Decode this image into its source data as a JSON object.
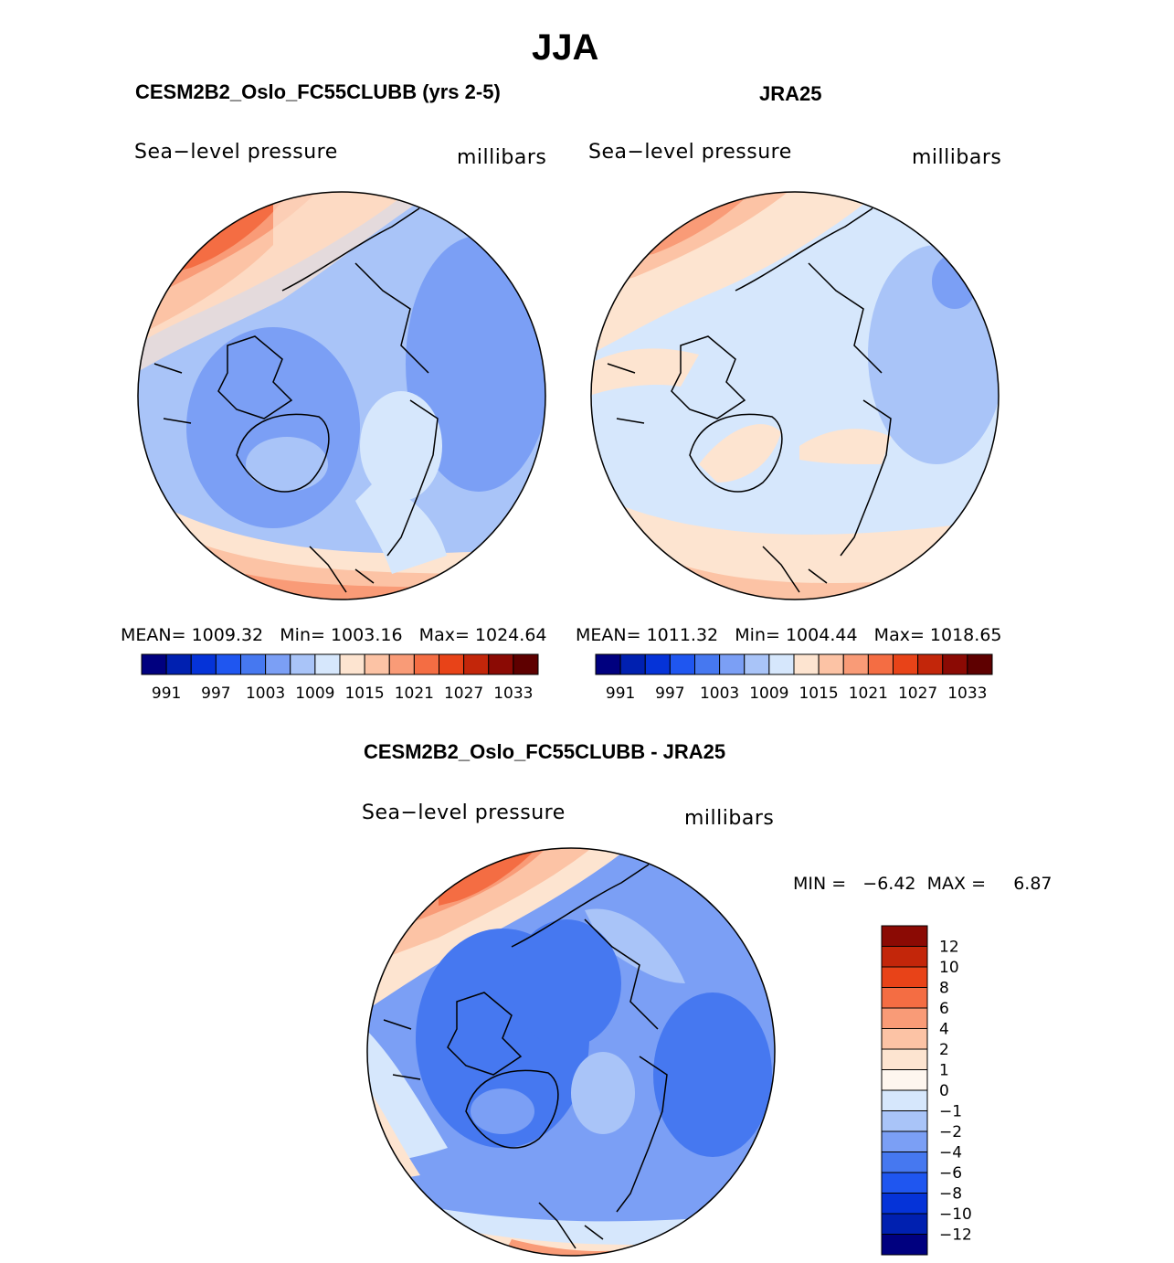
{
  "figure": {
    "title": "JJA"
  },
  "chart_data": [
    {
      "type": "heatmap",
      "projection": "north-polar-stereographic",
      "title": "CESM2B2_Oslo_FC55CLUBB (yrs 2-5)",
      "variable": "Sea−level pressure",
      "units": "millibars",
      "stats": {
        "mean_label": "MEAN=",
        "mean": "1009.32",
        "min_label": "Min=",
        "min": "1003.16",
        "max_label": "Max=",
        "max": "1024.64"
      },
      "colorbar": {
        "orientation": "horizontal",
        "levels": [
          "991",
          "997",
          "1003",
          "1009",
          "1015",
          "1021",
          "1027",
          "1033"
        ],
        "colors": [
          "#00007f",
          "#0020b0",
          "#0533d8",
          "#1f56f0",
          "#4678f0",
          "#7b9ff5",
          "#a9c4f8",
          "#d6e7fc",
          "#fde4d0",
          "#fcc3a5",
          "#f99b77",
          "#f46d43",
          "#e84318",
          "#c3260a",
          "#8b0a04",
          "#5e0000"
        ]
      }
    },
    {
      "type": "heatmap",
      "projection": "north-polar-stereographic",
      "title": "JRA25",
      "variable": "Sea−level pressure",
      "units": "millibars",
      "stats": {
        "mean_label": "MEAN=",
        "mean": "1011.32",
        "min_label": "Min=",
        "min": "1004.44",
        "max_label": "Max=",
        "max": "1018.65"
      },
      "colorbar": {
        "orientation": "horizontal",
        "levels": [
          "991",
          "997",
          "1003",
          "1009",
          "1015",
          "1021",
          "1027",
          "1033"
        ],
        "colors": [
          "#00007f",
          "#0020b0",
          "#0533d8",
          "#1f56f0",
          "#4678f0",
          "#7b9ff5",
          "#a9c4f8",
          "#d6e7fc",
          "#fde4d0",
          "#fcc3a5",
          "#f99b77",
          "#f46d43",
          "#e84318",
          "#c3260a",
          "#8b0a04",
          "#5e0000"
        ]
      }
    },
    {
      "type": "heatmap",
      "projection": "north-polar-stereographic",
      "title": "CESM2B2_Oslo_FC55CLUBB - JRA25",
      "variable": "Sea−level pressure",
      "units": "millibars",
      "stats": {
        "min_label": "MIN =",
        "min": "−6.42",
        "max_label": "MAX =",
        "max": "6.87"
      },
      "colorbar": {
        "orientation": "vertical",
        "levels": [
          "12",
          "10",
          "8",
          "6",
          "4",
          "2",
          "1",
          "0",
          "−1",
          "−2",
          "−4",
          "−6",
          "−8",
          "−10",
          "−12"
        ],
        "colors": [
          "#8b0a04",
          "#c3260a",
          "#e84318",
          "#f46d43",
          "#f99b77",
          "#fcc3a5",
          "#fde4d0",
          "#fef6ef",
          "#d6e7fc",
          "#a9c4f8",
          "#7b9ff5",
          "#4678f0",
          "#1f56f0",
          "#0533d8",
          "#0020b0",
          "#00007f"
        ]
      }
    }
  ]
}
